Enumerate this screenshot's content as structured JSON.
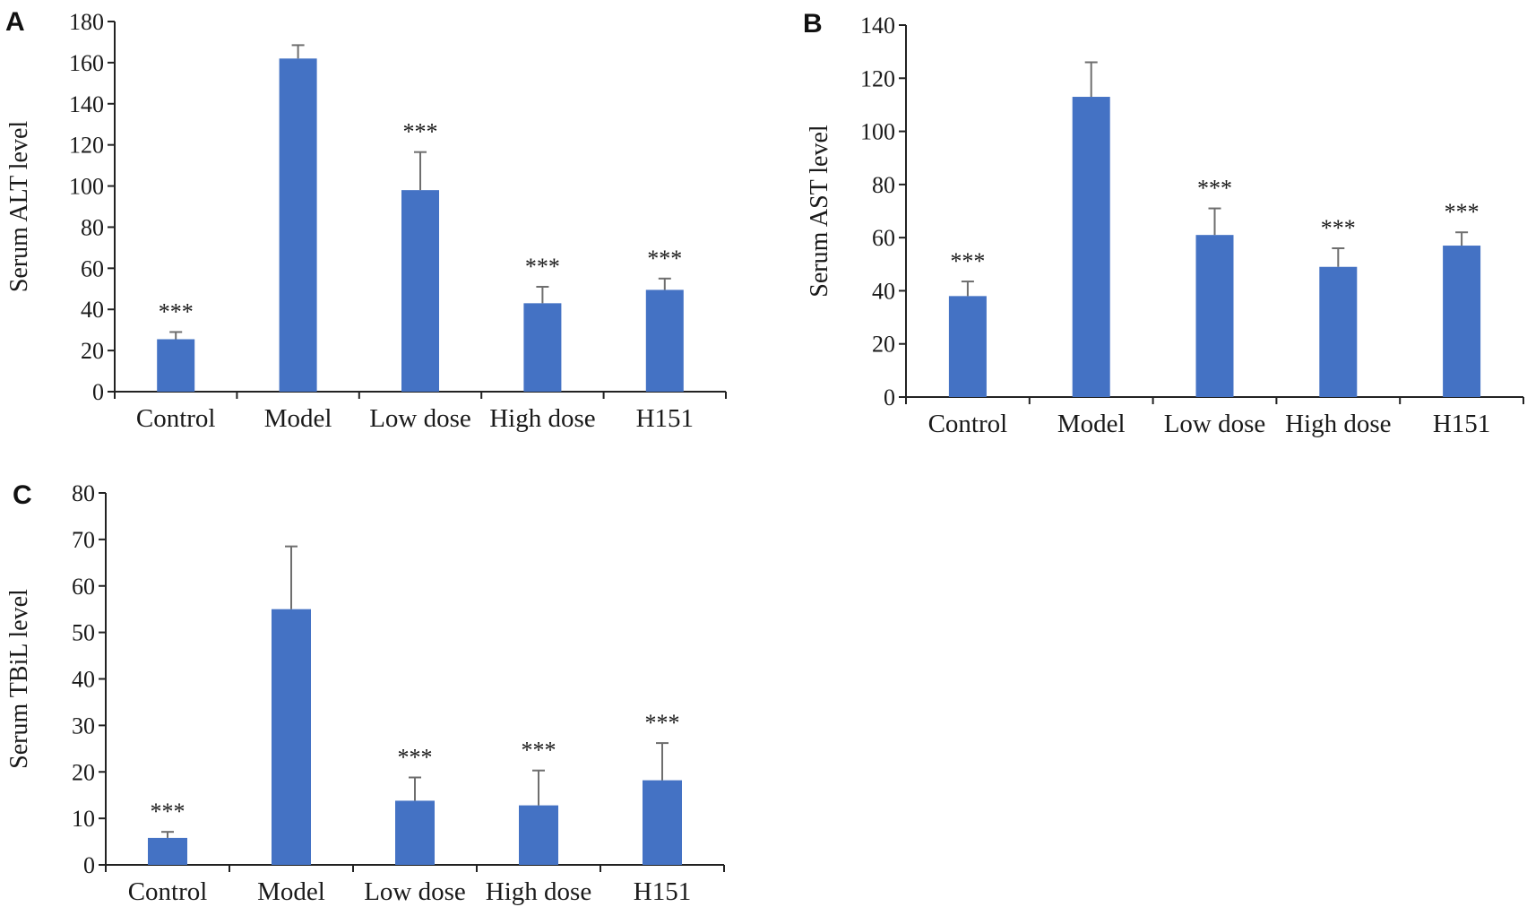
{
  "chart_data": [
    {
      "panel": "A",
      "type": "bar",
      "ylabel": "Serum ALT level",
      "xlabel": "",
      "ylim": [
        0,
        180
      ],
      "yticks": [
        0,
        20,
        40,
        60,
        80,
        100,
        120,
        140,
        160,
        180
      ],
      "categories": [
        "Control",
        "Model",
        "Low dose",
        "High dose",
        "H151"
      ],
      "values": [
        25.5,
        162,
        98,
        43,
        49.5
      ],
      "errors": [
        3.5,
        6.5,
        18.5,
        8,
        5.5
      ],
      "significance": [
        "***",
        "",
        "***",
        "***",
        "***"
      ],
      "bar_color": "#4472C4",
      "grid": false
    },
    {
      "panel": "B",
      "type": "bar",
      "ylabel": "Serum AST level",
      "xlabel": "",
      "ylim": [
        0,
        140
      ],
      "yticks": [
        0,
        20,
        40,
        60,
        80,
        100,
        120,
        140
      ],
      "categories": [
        "Control",
        "Model",
        "Low dose",
        "High dose",
        "H151"
      ],
      "values": [
        38,
        113,
        61,
        49,
        57
      ],
      "errors": [
        5.5,
        13,
        10,
        7,
        5
      ],
      "significance": [
        "***",
        "",
        "***",
        "***",
        "***"
      ],
      "bar_color": "#4472C4",
      "grid": false
    },
    {
      "panel": "C",
      "type": "bar",
      "ylabel": "Serum TBiL level",
      "xlabel": "",
      "ylim": [
        0,
        80
      ],
      "yticks": [
        0,
        10,
        20,
        30,
        40,
        50,
        60,
        70,
        80
      ],
      "categories": [
        "Control",
        "Model",
        "Low dose",
        "High dose",
        "H151"
      ],
      "values": [
        5.8,
        55,
        13.8,
        12.8,
        18.2
      ],
      "errors": [
        1.3,
        13.5,
        5,
        7.5,
        8
      ],
      "significance": [
        "***",
        "",
        "***",
        "***",
        "***"
      ],
      "bar_color": "#4472C4",
      "grid": false
    }
  ]
}
